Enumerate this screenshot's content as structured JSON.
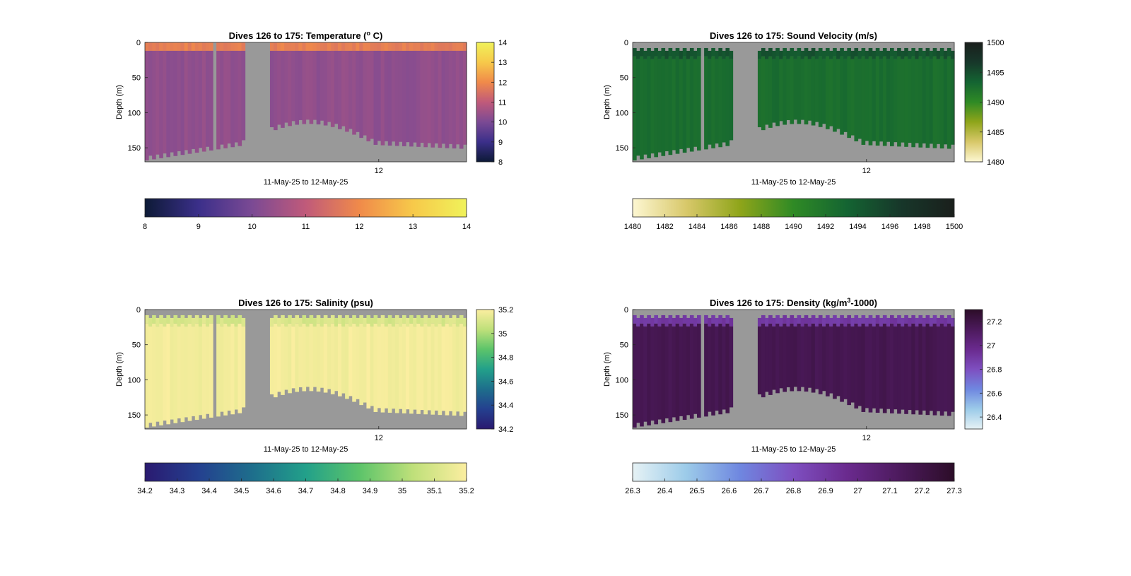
{
  "chart_data": [
    {
      "type": "heatmap",
      "title_text": "Dives 126 to 175: Temperature (",
      "title_sup": "o",
      "title_tail": " C)",
      "xlabel": "11-May-25 to 12-May-25",
      "ylabel": "Depth (m)",
      "x_ticks": [
        "12"
      ],
      "y_ticks": [
        0,
        50,
        100,
        150
      ],
      "ylim": [
        0,
        170
      ],
      "colorbar_range": [
        8,
        14
      ],
      "colorbar_ticks": [
        "14",
        "13",
        "12",
        "11",
        "10",
        "9",
        "8"
      ],
      "colorbar_h_range": [
        8,
        14
      ],
      "colorbar_h_ticks": [
        "8",
        "9",
        "10",
        "11",
        "12",
        "13",
        "14"
      ],
      "colormap": [
        "#0d1a36",
        "#3b2f8a",
        "#7b4a94",
        "#c05a7a",
        "#f08a4a",
        "#f7c94a",
        "#f0f25a"
      ],
      "typical_value_deep": 10.3,
      "typical_value_surface": 11.8,
      "grid": false
    },
    {
      "type": "heatmap",
      "title_text": "Dives 126 to 175: Sound Velocity (m/s)",
      "xlabel": "11-May-25 to 12-May-25",
      "ylabel": "Depth (m)",
      "x_ticks": [
        "12"
      ],
      "y_ticks": [
        0,
        50,
        100,
        150
      ],
      "ylim": [
        0,
        170
      ],
      "colorbar_range": [
        1480,
        1500
      ],
      "colorbar_ticks": [
        "1500",
        "1495",
        "1490",
        "1485",
        "1480"
      ],
      "colorbar_h_range": [
        1480,
        1500
      ],
      "colorbar_h_ticks": [
        "1480",
        "1482",
        "1484",
        "1486",
        "1488",
        "1490",
        "1492",
        "1494",
        "1496",
        "1498",
        "1500"
      ],
      "colormap": [
        "#fdf7d2",
        "#d8c86a",
        "#8fa51a",
        "#2f8a25",
        "#146432",
        "#17372a",
        "#1a1f1c"
      ],
      "typical_value_deep": 1492.5,
      "typical_value_surface": 1494.5,
      "grid": false
    },
    {
      "type": "heatmap",
      "title_text": "Dives 126 to 175: Salinity (psu)",
      "xlabel": "11-May-25 to 12-May-25",
      "ylabel": "Depth (m)",
      "x_ticks": [
        "12"
      ],
      "y_ticks": [
        0,
        50,
        100,
        150
      ],
      "ylim": [
        0,
        170
      ],
      "colorbar_range": [
        34.2,
        35.2
      ],
      "colorbar_ticks": [
        "35.2",
        "35",
        "34.8",
        "34.6",
        "34.4",
        "34.2"
      ],
      "colorbar_h_range": [
        34.2,
        35.2
      ],
      "colorbar_h_ticks": [
        "34.2",
        "34.3",
        "34.4",
        "34.5",
        "34.6",
        "34.7",
        "34.8",
        "34.9",
        "35",
        "35.1",
        "35.2"
      ],
      "colormap": [
        "#2a1a70",
        "#24408f",
        "#1e6e8c",
        "#22a08a",
        "#5cc46a",
        "#bfe07a",
        "#fbeea0"
      ],
      "typical_value_deep": 35.18,
      "typical_value_surface": 35.1,
      "grid": false
    },
    {
      "type": "heatmap",
      "title_text": "Dives 126 to 175: Density (kg/m",
      "title_sup": "3",
      "title_tail": "-1000)",
      "xlabel": "11-May-25 to 12-May-25",
      "ylabel": "Depth (m)",
      "x_ticks": [
        "12"
      ],
      "y_ticks": [
        0,
        50,
        100,
        150
      ],
      "ylim": [
        0,
        170
      ],
      "colorbar_range": [
        26.3,
        27.3
      ],
      "colorbar_ticks": [
        "27.2",
        "27",
        "26.8",
        "26.6",
        "26.4"
      ],
      "colorbar_h_range": [
        26.3,
        27.3
      ],
      "colorbar_h_ticks": [
        "26.3",
        "26.4",
        "26.5",
        "26.6",
        "26.7",
        "26.8",
        "26.9",
        "27",
        "27.1",
        "27.2",
        "27.3"
      ],
      "colormap": [
        "#e6f2f5",
        "#9ccbe9",
        "#6f87e0",
        "#7e4fc0",
        "#6a2a8e",
        "#4c1a5c",
        "#2c0d28"
      ],
      "typical_value_deep": 27.17,
      "typical_value_surface": 26.9,
      "grid": false
    }
  ]
}
